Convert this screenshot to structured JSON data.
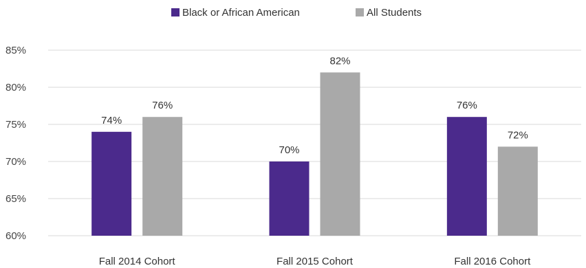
{
  "chart_data": {
    "type": "bar",
    "categories": [
      "Fall 2014 Cohort",
      "Fall 2015 Cohort",
      "Fall 2016 Cohort"
    ],
    "series": [
      {
        "name": "Black or African American",
        "values": [
          74,
          70,
          76
        ],
        "labels": [
          "74%",
          "70%",
          "76%"
        ],
        "color": "#4b2a8c"
      },
      {
        "name": "All Students",
        "values": [
          76,
          82,
          72
        ],
        "labels": [
          "76%",
          "82%",
          "72%"
        ],
        "color": "#a9a9a9"
      }
    ],
    "ylim": [
      60,
      85
    ],
    "yticks": [
      60,
      65,
      70,
      75,
      80,
      85
    ],
    "ytick_labels": [
      "60%",
      "65%",
      "70%",
      "75%",
      "80%",
      "85%"
    ],
    "grid": true,
    "legend_position": "top-center"
  }
}
